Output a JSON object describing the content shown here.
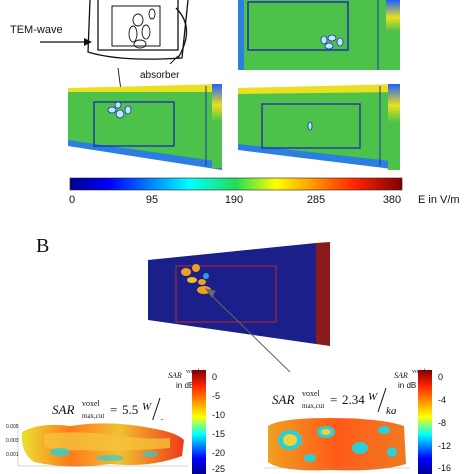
{
  "panel_a": {
    "wave_label": "TEM-wave",
    "absorber_label": "absorber",
    "colorbar_ticks": [
      "0",
      "95",
      "190",
      "285",
      "380"
    ],
    "colorbar_unit": "E in V/m"
  },
  "panel_b": {
    "label": "B",
    "sar_left": {
      "value": "5.5",
      "unit_num": "W",
      "unit_den": "kg"
    },
    "sar_right": {
      "value": "2.34",
      "unit_num": "W",
      "unit_den": "kg"
    },
    "sar_prefix": "SAR",
    "sar_sup": "voxel",
    "sar_sub": "max,cut",
    "sar_eq": "=",
    "scale_left": {
      "title_sup": "voxel",
      "title_lines": [
        "SAR",
        "in dB"
      ],
      "ticks": [
        "0",
        "-5",
        "-10",
        "-15",
        "-20",
        "-25"
      ]
    },
    "scale_right": {
      "title_sup": "voxel",
      "title_lines": [
        "SAR",
        "in dB"
      ],
      "ticks": [
        "0",
        "-4",
        "-8",
        "-12",
        "-16"
      ]
    }
  },
  "colors": {
    "field_green": "#4cc24a",
    "body_blue": "#1a1f8a",
    "box_blue": "#2233aa",
    "absorber_red": "#8b1a1a"
  }
}
